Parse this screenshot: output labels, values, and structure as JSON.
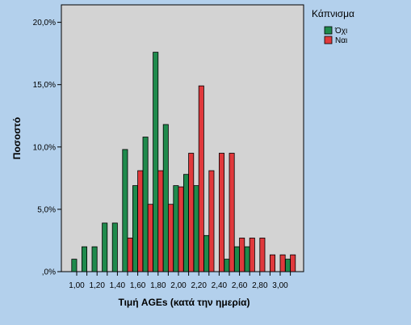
{
  "chart_data": {
    "type": "bar",
    "xlabel": "Τιμή AGEs (κατά την ημερία)",
    "ylabel": "Ποσοστό",
    "ylim": [
      0,
      21.4
    ],
    "y_ticks": [
      {
        "value": 0,
        "label": ",0%"
      },
      {
        "value": 5,
        "label": "5,0%"
      },
      {
        "value": 10,
        "label": "10,0%"
      },
      {
        "value": 15,
        "label": "15,0%"
      },
      {
        "value": 20,
        "label": "20,0%"
      }
    ],
    "x_tick_labels": [
      "1,00",
      "1,20",
      "1,40",
      "1,60",
      "1,80",
      "2,00",
      "2,20",
      "2,40",
      "2,60",
      "2,80",
      "3,00"
    ],
    "categories": [
      1.0,
      1.1,
      1.2,
      1.3,
      1.4,
      1.5,
      1.6,
      1.7,
      1.8,
      1.9,
      2.0,
      2.1,
      2.2,
      2.3,
      2.4,
      2.5,
      2.6,
      2.7,
      2.8,
      2.9,
      3.0,
      3.1
    ],
    "legend_title": "Κάπνισμα",
    "legend_position": "top-right, outside plot",
    "grid": false,
    "background": "#d3d3d3",
    "series": [
      {
        "name": "Όχι",
        "color": "#1f8a4c",
        "values": [
          1.0,
          2.0,
          2.0,
          3.9,
          3.9,
          9.8,
          6.9,
          10.8,
          17.6,
          11.8,
          6.9,
          7.8,
          6.9,
          2.9,
          0,
          1.0,
          2.0,
          2.0,
          0,
          0,
          0,
          1.0
        ]
      },
      {
        "name": "Ναι",
        "color": "#e0393c",
        "values": [
          0,
          0,
          0,
          0,
          0,
          2.7,
          8.1,
          5.4,
          8.1,
          5.4,
          6.8,
          9.5,
          14.9,
          8.1,
          9.5,
          9.5,
          2.7,
          2.7,
          2.7,
          1.35,
          1.35,
          1.35
        ]
      }
    ]
  }
}
